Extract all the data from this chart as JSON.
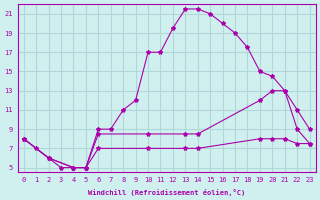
{
  "xlabel": "Windchill (Refroidissement éolien,°C)",
  "background_color": "#d0f0f0",
  "grid_color": "#b0d8d8",
  "line_color": "#aa00aa",
  "x_ticks": [
    0,
    1,
    2,
    3,
    4,
    5,
    6,
    7,
    8,
    9,
    10,
    11,
    12,
    13,
    14,
    15,
    16,
    17,
    18,
    19,
    20,
    21,
    22,
    23
  ],
  "y_ticks": [
    5,
    7,
    9,
    11,
    13,
    15,
    17,
    19,
    21
  ],
  "ylim": [
    4.5,
    22
  ],
  "xlim": [
    -0.5,
    23.5
  ],
  "line1_x": [
    0,
    1,
    2,
    3,
    4,
    5,
    6,
    7,
    8,
    9,
    10,
    11,
    12,
    13,
    14,
    15,
    16,
    17,
    18,
    19,
    20,
    21,
    22,
    23
  ],
  "line1_y": [
    8,
    7,
    6,
    5,
    5,
    5,
    9,
    9,
    11,
    12,
    17,
    17,
    19.5,
    21.5,
    21.5,
    21,
    20,
    19,
    17.5,
    15,
    14.5,
    13,
    9,
    7.5
  ],
  "line2_x": [
    0,
    2,
    4,
    5,
    6,
    10,
    13,
    14,
    19,
    20,
    21,
    22,
    23
  ],
  "line2_y": [
    8,
    6,
    5,
    5,
    8.5,
    8.5,
    8.5,
    8.5,
    12,
    13,
    13,
    11,
    9
  ],
  "line3_x": [
    0,
    2,
    4,
    5,
    6,
    10,
    13,
    14,
    19,
    20,
    21,
    22,
    23
  ],
  "line3_y": [
    8,
    6,
    5,
    5,
    7,
    7,
    7,
    7,
    8,
    8,
    8,
    7.5,
    7.5
  ]
}
